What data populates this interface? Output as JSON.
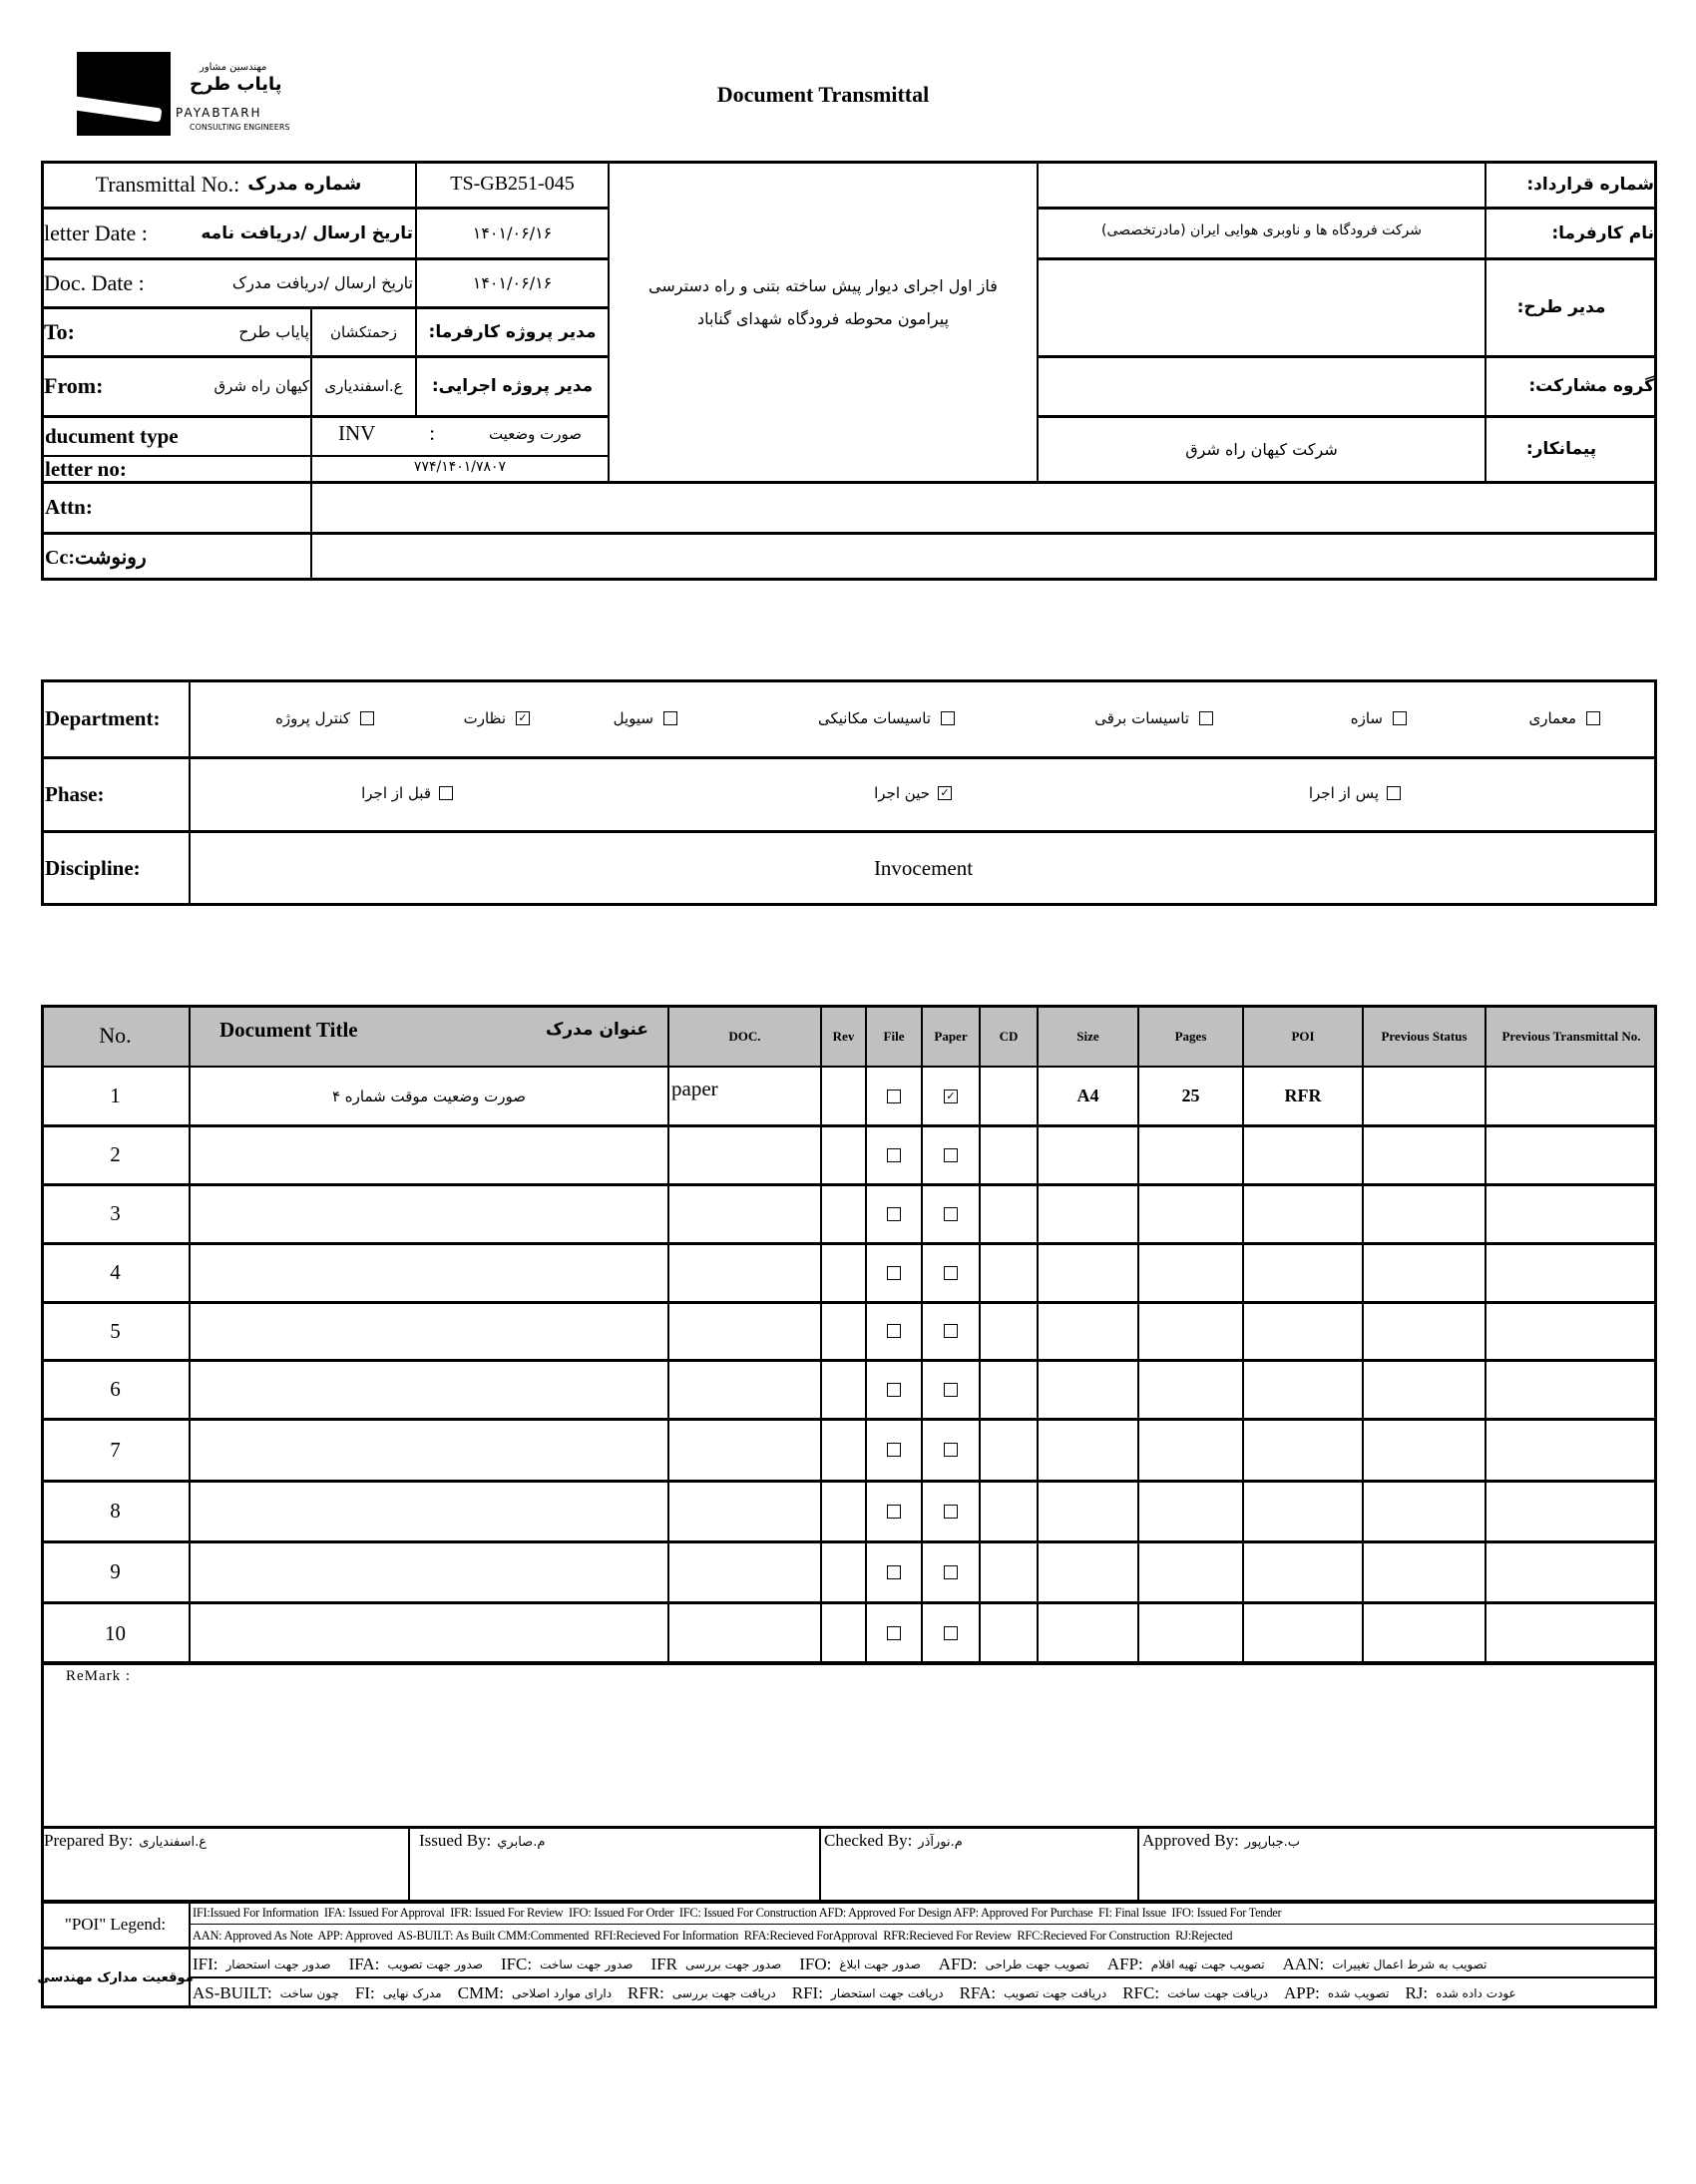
{
  "header": {
    "logo_fa_small": "مهندسین مشاور",
    "logo_fa": "پایاب طرح",
    "logo_en": "PAYABTARH",
    "logo_sub": "CONSULTING ENGINEERS",
    "title": "Document Transmittal"
  },
  "info": {
    "transmittal_label_en": "Transmittal No.:",
    "transmittal_label_fa": "شماره مدرک",
    "transmittal_no": "TS-GB251-045",
    "letter_date_label_en": "letter Date  :",
    "letter_date_label_fa": "تاریخ ارسال /دریافت نامه",
    "letter_date": "۱۴۰۱/۰۶/۱۶",
    "doc_date_label_en": "Doc. Date :",
    "doc_date_label_fa": "تاریخ ارسال /دریافت مدرک",
    "doc_date": "۱۴۰۱/۰۶/۱۶",
    "to_label": "To:",
    "to_value": "پایاب طرح",
    "to_person": "زحمتکشان",
    "to_role": "مدیر پروژه کارفرما:",
    "from_label": "From:",
    "from_value": "کیهان راه شرق",
    "from_person": "ع.اسفندیاری",
    "from_role": "مدیر پروژه اجرایی:",
    "doc_type_label": "ducument type",
    "doc_type_code": "INV",
    "doc_type_sep": ":",
    "doc_type_value": "صورت وضعیت",
    "letter_no_label": "letter no:",
    "letter_no": "۷۷۴/۱۴۰۱/۷۸۰۷",
    "attn_label": "Attn:",
    "attn_value": "",
    "cc_label": "Cc:رونوشت",
    "cc_value": "",
    "project_line1": "فاز اول اجرای دیوار پیش ساخته بتنی و راه دسترسی",
    "project_line2": "پیرامون محوطه فرودگاه شهدای گناباد",
    "right": [
      {
        "label": "شماره قرارداد:",
        "value": ""
      },
      {
        "label": "نام کارفرما:",
        "value": "شرکت فرودگاه ها و ناوبری هوایی ایران (مادرتخصصی)"
      },
      {
        "label": "مدیر طرح:",
        "value": ""
      },
      {
        "label": "گروه مشارکت:",
        "value": ""
      },
      {
        "label": "پیمانکار:",
        "value": "شرکت کیهان راه شرق"
      }
    ]
  },
  "classification": {
    "department_label": "Department:",
    "departments": [
      {
        "label": "معماری",
        "checked": false
      },
      {
        "label": "سازه",
        "checked": false
      },
      {
        "label": "تاسیسات برقی",
        "checked": false
      },
      {
        "label": "تاسیسات مکانیکی",
        "checked": false
      },
      {
        "label": "سیویل",
        "checked": false
      },
      {
        "label": "نظارت",
        "checked": true
      },
      {
        "label": "کنترل پروژه",
        "checked": false
      }
    ],
    "phase_label": "Phase:",
    "phases": [
      {
        "label": "پس از اجرا",
        "checked": false
      },
      {
        "label": "حین اجرا",
        "checked": true
      },
      {
        "label": "قبل از اجرا",
        "checked": false
      }
    ],
    "discipline_label": "Discipline:",
    "discipline": "Invocement"
  },
  "table": {
    "headers": {
      "no": "No.",
      "title_en": "Document Title",
      "title_fa": "عنوان مدرک",
      "doc": "DOC.",
      "rev": "Rev",
      "file": "File",
      "paper": "Paper",
      "cd": "CD",
      "size": "Size",
      "pages": "Pages",
      "poi": "POI",
      "prev_status": "Previous Status",
      "prev_transmittal": "Previous Transmittal No."
    },
    "rows": [
      {
        "no": "1",
        "title": "صورت وضعیت موقت شماره ۴",
        "doc": "paper",
        "rev": "",
        "file": false,
        "paper": true,
        "cd": "",
        "size": "A4",
        "pages": "25",
        "poi": "RFR",
        "prev_status": "",
        "prev_transmittal": ""
      },
      {
        "no": "2",
        "title": "",
        "doc": "",
        "rev": "",
        "file": false,
        "paper": false,
        "cd": "",
        "size": "",
        "pages": "",
        "poi": "",
        "prev_status": "",
        "prev_transmittal": ""
      },
      {
        "no": "3",
        "title": "",
        "doc": "",
        "rev": "",
        "file": false,
        "paper": false,
        "cd": "",
        "size": "",
        "pages": "",
        "poi": "",
        "prev_status": "",
        "prev_transmittal": ""
      },
      {
        "no": "4",
        "title": "",
        "doc": "",
        "rev": "",
        "file": false,
        "paper": false,
        "cd": "",
        "size": "",
        "pages": "",
        "poi": "",
        "prev_status": "",
        "prev_transmittal": ""
      },
      {
        "no": "5",
        "title": "",
        "doc": "",
        "rev": "",
        "file": false,
        "paper": false,
        "cd": "",
        "size": "",
        "pages": "",
        "poi": "",
        "prev_status": "",
        "prev_transmittal": ""
      },
      {
        "no": "6",
        "title": "",
        "doc": "",
        "rev": "",
        "file": false,
        "paper": false,
        "cd": "",
        "size": "",
        "pages": "",
        "poi": "",
        "prev_status": "",
        "prev_transmittal": ""
      },
      {
        "no": "7",
        "title": "",
        "doc": "",
        "rev": "",
        "file": false,
        "paper": false,
        "cd": "",
        "size": "",
        "pages": "",
        "poi": "",
        "prev_status": "",
        "prev_transmittal": ""
      },
      {
        "no": "8",
        "title": "",
        "doc": "",
        "rev": "",
        "file": false,
        "paper": false,
        "cd": "",
        "size": "",
        "pages": "",
        "poi": "",
        "prev_status": "",
        "prev_transmittal": ""
      },
      {
        "no": "9",
        "title": "",
        "doc": "",
        "rev": "",
        "file": false,
        "paper": false,
        "cd": "",
        "size": "",
        "pages": "",
        "poi": "",
        "prev_status": "",
        "prev_transmittal": ""
      },
      {
        "no": "10",
        "title": "",
        "doc": "",
        "rev": "",
        "file": false,
        "paper": false,
        "cd": "",
        "size": "",
        "pages": "",
        "poi": "",
        "prev_status": "",
        "prev_transmittal": ""
      }
    ]
  },
  "remark": {
    "label": "ReMark :",
    "value": ""
  },
  "signatures": [
    {
      "label": "Prepared By:",
      "name": "ع.اسفندیاری"
    },
    {
      "label": "Issued By:",
      "name": "م.صابري"
    },
    {
      "label": "Checked By:",
      "name": "م.نورآذر"
    },
    {
      "label": "Approved By:",
      "name": "ب.جبارپور"
    }
  ],
  "legend": {
    "poi_label": "\"POI\" Legend:",
    "line1": "IFI:Issued For Information  IFA: Issued For Approval  IFR: Issued For Review  IFO: Issued For Order  IFC: Issued For Construction AFD: Approved For Design AFP: Approved For Purchase  FI: Final Issue  IFO: Issued For Tender",
    "line2": "AAN: Approved As Note  APP: Approved  AS-BUILT: As Built CMM:Commented  RFI:Recieved For Information  RFA:Recieved ForApproval  RFR:Recieved For Review  RFC:Recieved For Construction  RJ:Rejected",
    "status_label": "موقعیت مدارک مهندسی",
    "line3": [
      {
        "code": "IFI:",
        "fa": "صدور جهت استحضار"
      },
      {
        "code": "IFA:",
        "fa": "صدور جهت تصویب"
      },
      {
        "code": "IFC:",
        "fa": "صدور جهت ساخت"
      },
      {
        "code": "IFR",
        "fa": "صدور جهت بررسی"
      },
      {
        "code": "IFO:",
        "fa": "صدور جهت ابلاغ"
      },
      {
        "code": "AFD:",
        "fa": "تصویب جهت طراحی"
      },
      {
        "code": "AFP:",
        "fa": "تصویب جهت تهیه اقلام"
      },
      {
        "code": "AAN:",
        "fa": "تصویب به شرط اعمال تغییرات"
      }
    ],
    "line4": [
      {
        "code": "AS-BUILT:",
        "fa": "چون ساخت"
      },
      {
        "code": "FI:",
        "fa": "مدرک نهایی"
      },
      {
        "code": "CMM:",
        "fa": "دارای موارد اصلاحی"
      },
      {
        "code": "RFR:",
        "fa": "دریافت جهت بررسی"
      },
      {
        "code": "RFI:",
        "fa": "دریافت جهت استحضار"
      },
      {
        "code": "RFA:",
        "fa": "دریافت جهت تصویب"
      },
      {
        "code": "RFC:",
        "fa": "دریافت جهت ساخت"
      },
      {
        "code": "APP:",
        "fa": "تصویب شده"
      },
      {
        "code": "RJ:",
        "fa": "عودت داده شده"
      }
    ]
  }
}
